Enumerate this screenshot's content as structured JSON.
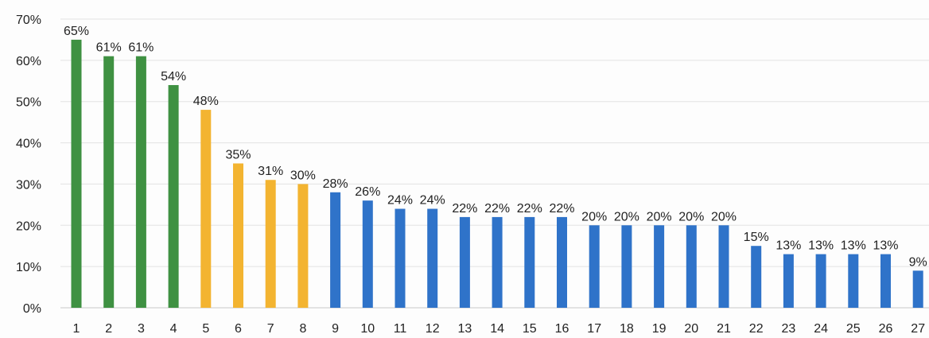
{
  "chart_data": {
    "type": "bar",
    "categories": [
      "1",
      "2",
      "3",
      "4",
      "5",
      "6",
      "7",
      "8",
      "9",
      "10",
      "11",
      "12",
      "13",
      "14",
      "15",
      "16",
      "17",
      "18",
      "19",
      "20",
      "21",
      "22",
      "23",
      "24",
      "25",
      "26",
      "27"
    ],
    "values": [
      65,
      61,
      61,
      54,
      48,
      35,
      31,
      30,
      28,
      26,
      24,
      24,
      22,
      22,
      22,
      22,
      20,
      20,
      20,
      20,
      20,
      15,
      13,
      13,
      13,
      13,
      9
    ],
    "data_labels": [
      "65%",
      "61%",
      "61%",
      "54%",
      "48%",
      "35%",
      "31%",
      "30%",
      "28%",
      "26%",
      "24%",
      "24%",
      "22%",
      "22%",
      "22%",
      "22%",
      "20%",
      "20%",
      "20%",
      "20%",
      "20%",
      "15%",
      "13%",
      "13%",
      "13%",
      "13%",
      "9%"
    ],
    "bar_colors": [
      "#3f9142",
      "#3f9142",
      "#3f9142",
      "#3f9142",
      "#f3b431",
      "#f3b431",
      "#f3b431",
      "#f3b431",
      "#2f73c9",
      "#2f73c9",
      "#2f73c9",
      "#2f73c9",
      "#2f73c9",
      "#2f73c9",
      "#2f73c9",
      "#2f73c9",
      "#2f73c9",
      "#2f73c9",
      "#2f73c9",
      "#2f73c9",
      "#2f73c9",
      "#2f73c9",
      "#2f73c9",
      "#2f73c9",
      "#2f73c9",
      "#2f73c9",
      "#2f73c9"
    ],
    "ylim": [
      0,
      70
    ],
    "yticks": [
      "0%",
      "10%",
      "20%",
      "30%",
      "40%",
      "50%",
      "60%",
      "70%"
    ],
    "grid": true,
    "legend": "none",
    "title": "",
    "xlabel": "",
    "ylabel": ""
  }
}
